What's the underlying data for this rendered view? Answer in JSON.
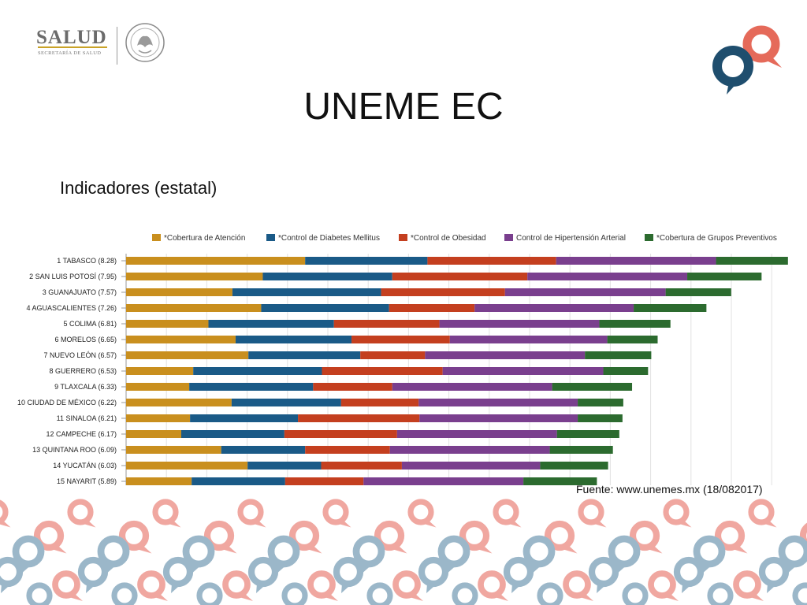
{
  "header": {
    "logo_text": "SALUD",
    "logo_subtext": "SECRETARÍA DE SALUD",
    "seal_icon": "mexico-seal-icon",
    "brand_icon": "speech-bubbles-icon"
  },
  "slide": {
    "title": "UNEME EC",
    "subtitle": "Indicadores (estatal)",
    "source": "Fuente: www.unemes.mx (18/082017)"
  },
  "colors": {
    "bubble_blue": "#1f4e6e",
    "bubble_red": "#e56a5a",
    "pattern_blue": "#9bb7c9",
    "pattern_red": "#f0a7a0"
  },
  "chart_data": {
    "type": "bar",
    "orientation": "horizontal",
    "stacked": true,
    "legend_position": "top",
    "grid": true,
    "categories": [
      "1 TABASCO (8.28)",
      "2 SAN LUIS POTOSÍ (7.95)",
      "3 GUANAJUATO (7.57)",
      "4 AGUASCALIENTES (7.26)",
      "5 COLIMA (6.81)",
      "6 MORELOS (6.65)",
      "7 NUEVO LEÓN (6.57)",
      "8 GUERRERO (6.53)",
      "9 TLAXCALA (6.33)",
      "10 CIUDAD DE MÉXICO (6.22)",
      "11 SINALOA (6.21)",
      "12 CAMPECHE (6.17)",
      "13 QUINTANA ROO (6.09)",
      "14 YUCATÁN (6.03)",
      "15 NAYARIT (5.89)"
    ],
    "series": [
      {
        "name": "*Cobertura de Atención",
        "color": "#c98f1e",
        "values": [
          2.24,
          1.71,
          1.33,
          1.69,
          1.03,
          1.37,
          1.53,
          0.84,
          0.79,
          1.32,
          0.8,
          0.69,
          1.19,
          1.52,
          0.82
        ]
      },
      {
        "name": "*Control de Diabetes Mellitus",
        "color": "#1a5a87",
        "values": [
          1.53,
          1.62,
          1.86,
          1.6,
          1.57,
          1.45,
          1.4,
          1.61,
          1.55,
          1.37,
          1.35,
          1.29,
          1.05,
          0.92,
          1.17
        ]
      },
      {
        "name": "*Control de Obesidad",
        "color": "#c43f1f",
        "values": [
          1.61,
          1.69,
          1.55,
          1.07,
          1.32,
          1.23,
          0.81,
          1.51,
          0.99,
          0.97,
          1.52,
          1.41,
          1.06,
          1.01,
          0.98
        ]
      },
      {
        "name": "Control de Hipertensión Arterial",
        "color": "#7a3f8e",
        "values": [
          2.0,
          2.0,
          2.01,
          1.99,
          2.0,
          1.97,
          2.0,
          2.01,
          2.0,
          1.99,
          1.98,
          2.0,
          2.0,
          1.73,
          2.0
        ]
      },
      {
        "name": "*Cobertura de Grupos Preventivos",
        "color": "#2c6b2f",
        "values": [
          0.9,
          0.93,
          0.82,
          0.91,
          0.89,
          0.63,
          0.83,
          0.56,
          1.0,
          0.57,
          0.56,
          0.78,
          0.79,
          0.85,
          0.92
        ]
      }
    ],
    "xlim": [
      0,
      8.4
    ]
  }
}
